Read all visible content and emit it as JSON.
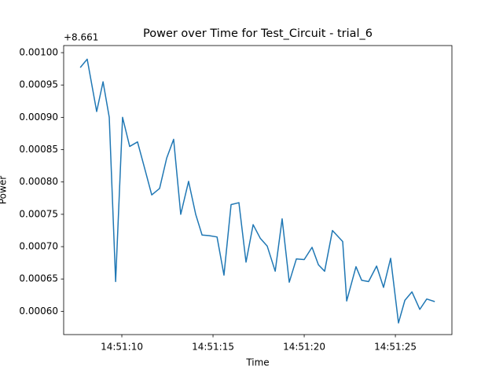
{
  "chart_data": {
    "type": "line",
    "title": "Power over Time for Test_Circuit - trial_6",
    "xlabel": "Time",
    "ylabel": "Power",
    "y_offset_text": "+8.661",
    "x": [
      7.72,
      8.1,
      8.62,
      8.97,
      9.31,
      9.66,
      10.04,
      10.43,
      10.86,
      11.29,
      11.64,
      12.07,
      12.46,
      12.84,
      13.23,
      13.66,
      14.05,
      14.4,
      14.78,
      15.22,
      15.6,
      15.99,
      16.42,
      16.81,
      17.2,
      17.59,
      17.97,
      18.41,
      18.79,
      19.18,
      19.57,
      20.0,
      20.43,
      20.78,
      21.12,
      21.55,
      22.11,
      22.33,
      22.84,
      23.15,
      23.53,
      23.97,
      24.35,
      24.74,
      25.17,
      25.52,
      25.91,
      26.34,
      26.72,
      27.16
    ],
    "series": [
      {
        "name": "Power",
        "color": "#1f77b4",
        "values": [
          0.000977,
          0.00099,
          0.000909,
          0.000955,
          0.0009,
          0.000646,
          0.0009,
          0.000855,
          0.000862,
          0.000817,
          0.00078,
          0.00079,
          0.000837,
          0.000866,
          0.00075,
          0.000801,
          0.00075,
          0.000718,
          0.000717,
          0.000715,
          0.000656,
          0.000765,
          0.000768,
          0.000676,
          0.000734,
          0.000713,
          0.000701,
          0.000662,
          0.000743,
          0.000645,
          0.000681,
          0.00068,
          0.000699,
          0.000672,
          0.000662,
          0.000725,
          0.000708,
          0.000616,
          0.000669,
          0.000648,
          0.000646,
          0.00067,
          0.000637,
          0.000682,
          0.000582,
          0.000617,
          0.00063,
          0.000603,
          0.000619,
          0.000615
        ]
      }
    ],
    "xlim": [
      6.81,
      28.1
    ],
    "xticks": [
      {
        "value": 10,
        "label": "14:51:10"
      },
      {
        "value": 15,
        "label": "14:51:15"
      },
      {
        "value": 20,
        "label": "14:51:20"
      },
      {
        "value": 25,
        "label": "14:51:25"
      }
    ],
    "ylim": [
      0.000564,
      0.001011
    ],
    "yticks": [
      {
        "value": 0.0006,
        "label": "0.00060"
      },
      {
        "value": 0.00065,
        "label": "0.00065"
      },
      {
        "value": 0.0007,
        "label": "0.00070"
      },
      {
        "value": 0.00075,
        "label": "0.00075"
      },
      {
        "value": 0.0008,
        "label": "0.00080"
      },
      {
        "value": 0.00085,
        "label": "0.00085"
      },
      {
        "value": 0.0009,
        "label": "0.00090"
      },
      {
        "value": 0.00095,
        "label": "0.00095"
      },
      {
        "value": 0.001,
        "label": "0.00100"
      }
    ],
    "grid": false
  }
}
